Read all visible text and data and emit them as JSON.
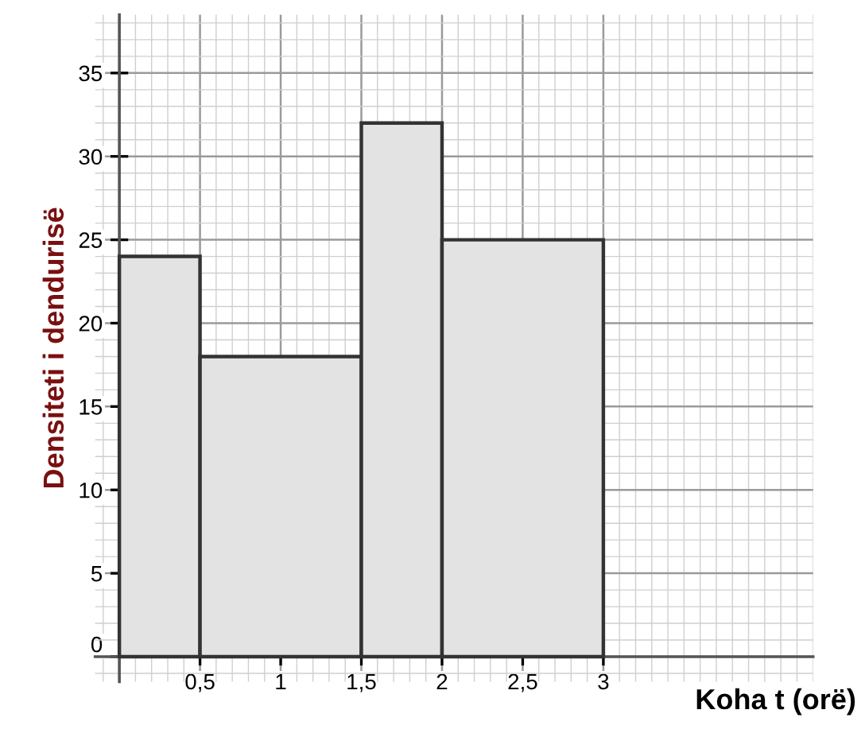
{
  "chart_data": {
    "type": "histogram",
    "xlabel": "Koha t (orë)",
    "ylabel": "Densiteti i dendurisë",
    "bins": [
      0,
      0.5,
      1.5,
      2,
      3
    ],
    "values": [
      24,
      18,
      32,
      25
    ],
    "color": "#e3e3e3",
    "xlim": [
      -0.15,
      4.3
    ],
    "ylim": [
      -1.5,
      38.5
    ],
    "xticks": [
      {
        "value": 0.5,
        "label": "0,5"
      },
      1,
      {
        "value": 1.5,
        "label": "1,5"
      },
      2,
      {
        "value": 2.5,
        "label": "2,5"
      },
      3
    ],
    "yticks": [
      0,
      5,
      10,
      15,
      20,
      25,
      30,
      35
    ],
    "grid": true
  }
}
